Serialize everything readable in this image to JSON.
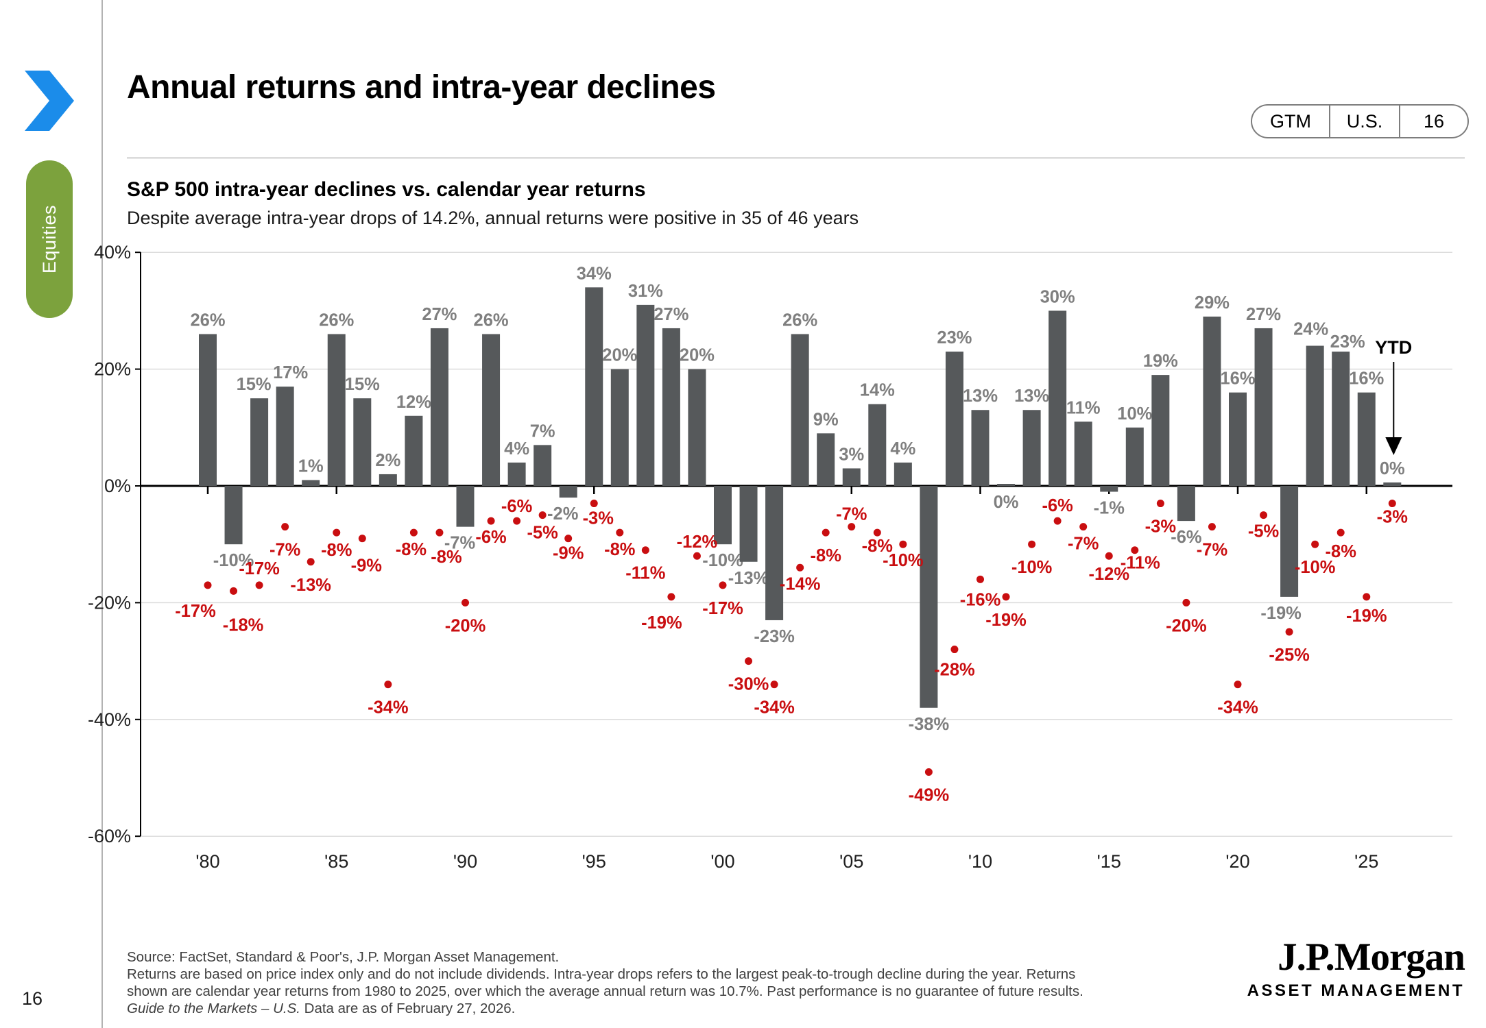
{
  "page": {
    "title": "Annual returns and intra-year declines",
    "page_number": "16",
    "sidebar_label": "Equities"
  },
  "badge": {
    "items": [
      "GTM",
      "U.S.",
      "16"
    ]
  },
  "chart_data": {
    "type": "bar",
    "title": "S&P 500 intra-year declines vs. calendar year returns",
    "subtitle": "Despite average intra-year drops of 14.2%, annual returns were positive in 35 of 46 years",
    "categories": [
      1980,
      1981,
      1982,
      1983,
      1984,
      1985,
      1986,
      1987,
      1988,
      1989,
      1990,
      1991,
      1992,
      1993,
      1994,
      1995,
      1996,
      1997,
      1998,
      1999,
      2000,
      2001,
      2002,
      2003,
      2004,
      2005,
      2006,
      2007,
      2008,
      2009,
      2010,
      2011,
      2012,
      2013,
      2014,
      2015,
      2016,
      2017,
      2018,
      2019,
      2020,
      2021,
      2022,
      2023,
      2024,
      2025,
      "YTD"
    ],
    "series": [
      {
        "name": "Calendar year return",
        "type": "bar",
        "values": [
          26,
          -10,
          15,
          17,
          1,
          26,
          15,
          2,
          12,
          27,
          -7,
          26,
          4,
          7,
          -2,
          34,
          20,
          31,
          27,
          20,
          -10,
          -13,
          -23,
          26,
          9,
          3,
          14,
          4,
          -38,
          23,
          13,
          0,
          13,
          30,
          11,
          -1,
          10,
          19,
          -6,
          29,
          16,
          27,
          -19,
          24,
          23,
          16,
          0
        ]
      },
      {
        "name": "Intra-year decline",
        "type": "scatter",
        "values": [
          -17,
          -18,
          -17,
          -7,
          -13,
          -8,
          -9,
          -34,
          -8,
          -8,
          -20,
          -6,
          -6,
          -5,
          -9,
          -3,
          -8,
          -11,
          -19,
          -12,
          -17,
          -30,
          -34,
          -14,
          -8,
          -7,
          -8,
          -10,
          -49,
          -28,
          -16,
          -19,
          -10,
          -6,
          -7,
          -12,
          -11,
          -3,
          -20,
          -7,
          -34,
          -5,
          -25,
          -10,
          -8,
          -19,
          -3
        ]
      }
    ],
    "ylim": [
      -60,
      40
    ],
    "yticks": [
      {
        "value": 40,
        "label": "40%"
      },
      {
        "value": 20,
        "label": "20%"
      },
      {
        "value": 0,
        "label": "0%"
      },
      {
        "value": -20,
        "label": "-20%"
      },
      {
        "value": -40,
        "label": "-40%"
      },
      {
        "value": -60,
        "label": "-60%"
      }
    ],
    "xticks": [
      {
        "index": 0,
        "label": "'80"
      },
      {
        "index": 5,
        "label": "'85"
      },
      {
        "index": 10,
        "label": "'90"
      },
      {
        "index": 15,
        "label": "'95"
      },
      {
        "index": 20,
        "label": "'00"
      },
      {
        "index": 25,
        "label": "'05"
      },
      {
        "index": 30,
        "label": "'10"
      },
      {
        "index": 35,
        "label": "'15"
      },
      {
        "index": 40,
        "label": "'20"
      },
      {
        "index": 45,
        "label": "'25"
      }
    ],
    "annotations": {
      "ytd_label": "YTD"
    },
    "grid": true,
    "legend": "none",
    "colors": {
      "bar": "#56595B",
      "bar_label": "#7F7F7F",
      "dot": "#C90E10",
      "dot_label": "#C90E10",
      "axis": "#000000",
      "gridline": "#DCDCDC",
      "accent_blue": "#1B8CEA",
      "accent_green": "#7CA23D"
    }
  },
  "footer": {
    "source_line": "Source: FactSet, Standard & Poor's, J.P. Morgan Asset Management.",
    "body_line1": "Returns are based on price index only and do not include dividends. Intra-year drops refers to the largest peak-to-trough decline during the year. Returns",
    "body_line2": "shown are calendar year returns from 1980 to 2025, over which the average annual return was 10.7%. Past performance is no guarantee of future results.",
    "gtm_italic": "Guide to the Markets – U.S.",
    "gtm_rest": " Data are as of February 27, 2026.",
    "brand_logo": "J.P.Morgan",
    "brand_sub": "ASSET MANAGEMENT"
  }
}
